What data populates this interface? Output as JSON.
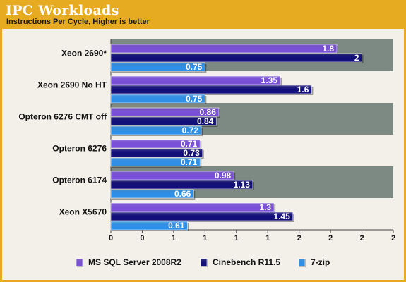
{
  "chart_data": {
    "type": "bar",
    "orientation": "horizontal",
    "title": "IPC Workloads",
    "subtitle": "Instructions Per Cycle, Higher is better",
    "categories": [
      "Xeon 2690*",
      "Xeon 2690 No HT",
      "Opteron 6276 CMT off",
      "Opteron 6276",
      "Opteron 6174",
      "Xeon X5670"
    ],
    "series": [
      {
        "name": "MS SQL Server 2008R2",
        "values": [
          1.8,
          1.35,
          0.86,
          0.71,
          0.98,
          1.3
        ],
        "labels": [
          "1.8",
          "1.35",
          "0.86",
          "0.71",
          "0.98",
          "1.3"
        ],
        "color": "#7a50d8"
      },
      {
        "name": "Cinebench R11.5",
        "values": [
          2,
          1.6,
          0.84,
          0.73,
          1.13,
          1.45
        ],
        "labels": [
          "2",
          "1.6",
          "0.84",
          "0.73",
          "1.13",
          "1.45"
        ],
        "color": "#14107a"
      },
      {
        "name": "7-zip",
        "values": [
          0.75,
          0.75,
          0.72,
          0.71,
          0.66,
          0.61
        ],
        "labels": [
          "0.75",
          "0.75",
          "0.72",
          "0.71",
          "0.66",
          "0.61"
        ],
        "color": "#2f8fe6"
      }
    ],
    "xlim": [
      0,
      2.25
    ],
    "x_tick_labels": [
      "0",
      "0",
      "1",
      "1",
      "1",
      "1",
      "2",
      "2",
      "2",
      "2"
    ],
    "grid": false,
    "legend_position": "bottom"
  },
  "colors": {
    "background": "#e7ab21",
    "plot_band_dark": "#7d8a84",
    "plot_band_light": "#f3f0ea"
  }
}
